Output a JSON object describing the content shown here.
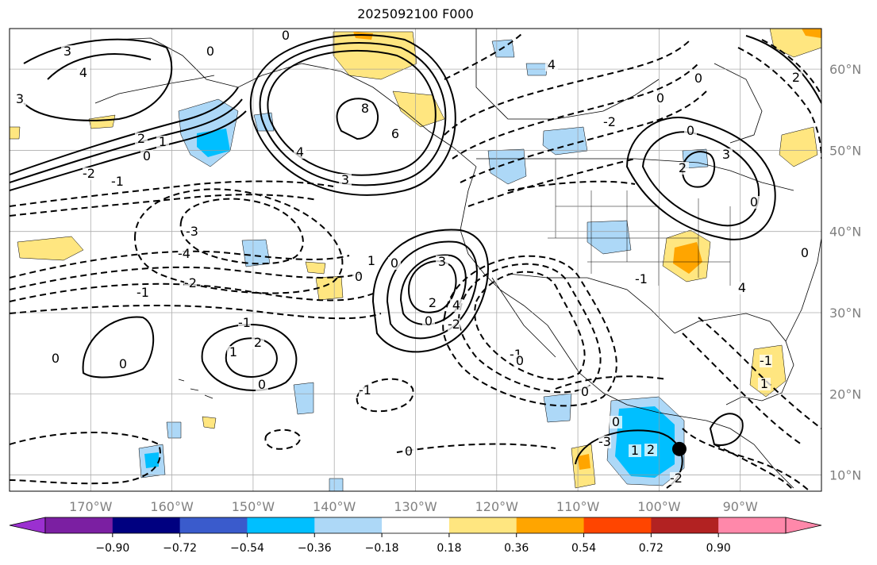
{
  "title": "2025092100 F000",
  "map": {
    "projection": "PlateCarree",
    "lon_range": [
      -180,
      -80
    ],
    "lat_range": [
      8,
      65
    ]
  },
  "lat_labels": [
    {
      "deg": 60,
      "text": "60°N"
    },
    {
      "deg": 50,
      "text": "50°N"
    },
    {
      "deg": 40,
      "text": "40°N"
    },
    {
      "deg": 30,
      "text": "30°N"
    },
    {
      "deg": 20,
      "text": "20°N"
    },
    {
      "deg": 10,
      "text": "10°N"
    }
  ],
  "lon_labels": [
    {
      "deg": -170,
      "text": "170°W"
    },
    {
      "deg": -160,
      "text": "160°W"
    },
    {
      "deg": -150,
      "text": "150°W"
    },
    {
      "deg": -140,
      "text": "140°W"
    },
    {
      "deg": -130,
      "text": "130°W"
    },
    {
      "deg": -120,
      "text": "120°W"
    },
    {
      "deg": -110,
      "text": "110°W"
    },
    {
      "deg": -100,
      "text": "100°W"
    },
    {
      "deg": -90,
      "text": "90°W"
    }
  ],
  "colorbar": {
    "boundaries": [
      -0.9,
      -0.72,
      -0.54,
      -0.36,
      -0.18,
      0.18,
      0.36,
      0.54,
      0.72,
      0.9
    ],
    "tick_labels": [
      "−0.90",
      "−0.72",
      "−0.54",
      "−0.36",
      "−0.18",
      "0.18",
      "0.36",
      "0.54",
      "0.72",
      "0.90"
    ],
    "colors": [
      "#7b1fa2",
      "#000080",
      "#3a5bcc",
      "#00bfff",
      "#add8f7",
      "#ffffff",
      "#ffe680",
      "#ffa500",
      "#ff4500",
      "#b22222",
      "#ff88aa"
    ],
    "extend_min_color": "#9b30d0",
    "extend_max_color": "#ff88aa"
  },
  "contour_labels": [
    "3",
    "4",
    "3",
    "0",
    "0",
    "6",
    "8",
    "4",
    "3",
    "2",
    "1",
    "0",
    "-1",
    "-2",
    "-3",
    "-4",
    "-2",
    "-1",
    "0",
    "2",
    "3",
    "4",
    "2",
    "1",
    "0",
    "-1",
    "-2",
    "0",
    "1",
    "0",
    "-1",
    "0",
    "2",
    "1",
    "0",
    "-3",
    "-2",
    "-1",
    "0",
    "4",
    "0",
    "-2",
    "0",
    "2",
    "0",
    "-1",
    "1",
    "0",
    "2",
    "3",
    "4",
    "0",
    "-1",
    "0",
    "0",
    "0"
  ],
  "marker": {
    "lon": -97.5,
    "lat": 13.2,
    "name": "storm-center"
  }
}
